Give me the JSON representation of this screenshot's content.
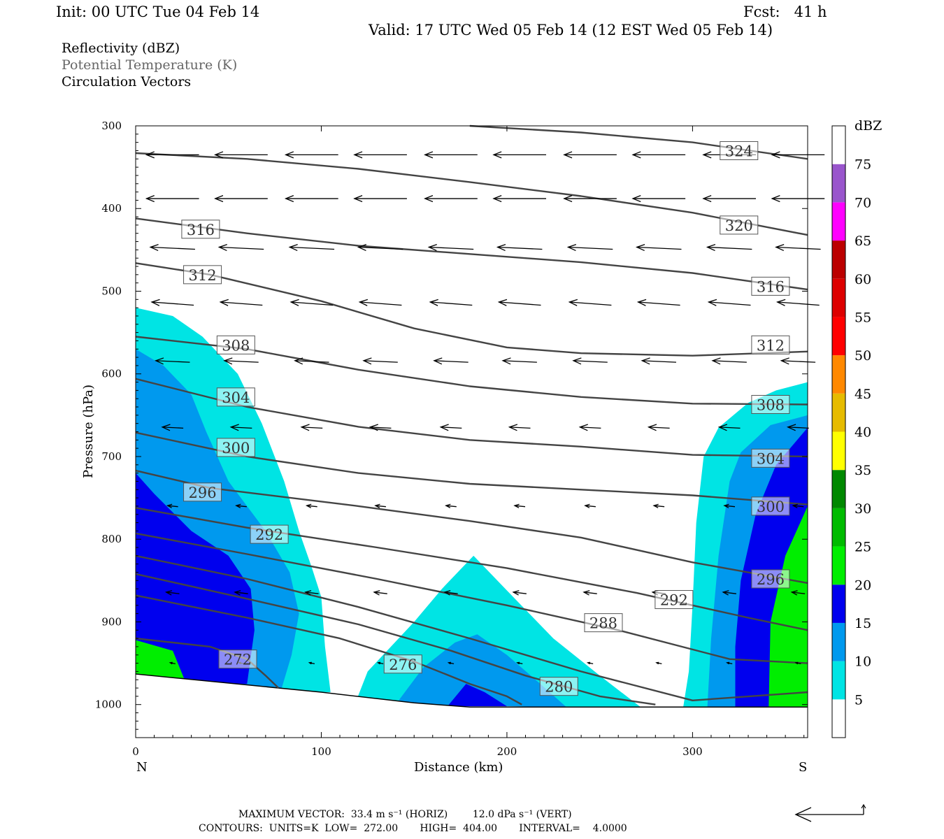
{
  "header": {
    "init": "Init: 00 UTC Tue 04 Feb 14",
    "fcst": "Fcst:   41 h",
    "valid": "Valid: 17 UTC Wed 05 Feb 14 (12 EST Wed 05 Feb 14)",
    "field1": "Reflectivity (dBZ)",
    "field2": "Potential Temperature (K)",
    "field3": "Circulation Vectors"
  },
  "footer": {
    "vector_line": "MAXIMUM VECTOR:  33.4 m s⁻¹ (HORIZ)        12.0 dPa s⁻¹ (VERT)",
    "contour_line": "CONTOURS:  UNITS=K  LOW=  272.00       HIGH=  404.00       INTERVAL=    4.0000"
  },
  "chart_data": {
    "type": "cross-section",
    "xlabel": "Distance (km)",
    "ylabel": "Pressure (hPa)",
    "x_end_labels": {
      "left": "N",
      "right": "S"
    },
    "xlim": [
      0,
      362
    ],
    "ylim": [
      1040,
      300
    ],
    "xticks": [
      0,
      100,
      200,
      300
    ],
    "yticks": [
      300,
      400,
      500,
      600,
      700,
      800,
      900,
      1000
    ],
    "theta_contours": {
      "units": "K",
      "low": 272,
      "high": 404,
      "interval": 4,
      "lines": [
        {
          "theta": 324,
          "pts": [
            [
              180,
              300
            ],
            [
              240,
              308
            ],
            [
              300,
              320
            ],
            [
              362,
              340
            ]
          ],
          "labels": [
            [
              325,
              330
            ]
          ]
        },
        {
          "theta": 320,
          "pts": [
            [
              0,
              333
            ],
            [
              60,
              340
            ],
            [
              120,
              352
            ],
            [
              180,
              368
            ],
            [
              240,
              385
            ],
            [
              300,
              405
            ],
            [
              362,
              432
            ]
          ],
          "labels": [
            [
              325,
              420
            ]
          ]
        },
        {
          "theta": 316,
          "pts": [
            [
              0,
              412
            ],
            [
              60,
              430
            ],
            [
              120,
              445
            ],
            [
              180,
              455
            ],
            [
              240,
              465
            ],
            [
              300,
              478
            ],
            [
              362,
              498
            ]
          ],
          "labels": [
            [
              35,
              425
            ],
            [
              342,
              494
            ]
          ]
        },
        {
          "theta": 312,
          "pts": [
            [
              0,
              466
            ],
            [
              40,
              480
            ],
            [
              100,
              512
            ],
            [
              150,
              545
            ],
            [
              200,
              568
            ],
            [
              240,
              575
            ],
            [
              300,
              578
            ],
            [
              362,
              573
            ]
          ],
          "labels": [
            [
              36,
              480
            ],
            [
              342,
              565
            ]
          ]
        },
        {
          "theta": 308,
          "pts": [
            [
              0,
              555
            ],
            [
              60,
              570
            ],
            [
              120,
              595
            ],
            [
              180,
              615
            ],
            [
              240,
              628
            ],
            [
              300,
              636
            ],
            [
              362,
              637
            ]
          ],
          "labels": [
            [
              54,
              565
            ],
            [
              342,
              637
            ]
          ]
        },
        {
          "theta": 304,
          "pts": [
            [
              0,
              606
            ],
            [
              60,
              640
            ],
            [
              120,
              664
            ],
            [
              180,
              680
            ],
            [
              240,
              688
            ],
            [
              300,
              698
            ],
            [
              362,
              700
            ]
          ],
          "labels": [
            [
              54,
              628
            ],
            [
              342,
              702
            ]
          ]
        },
        {
          "theta": 300,
          "pts": [
            [
              0,
              671
            ],
            [
              60,
              700
            ],
            [
              120,
              720
            ],
            [
              180,
              733
            ],
            [
              240,
              740
            ],
            [
              300,
              747
            ],
            [
              362,
              758
            ]
          ],
          "labels": [
            [
              54,
              689
            ],
            [
              342,
              760
            ]
          ]
        },
        {
          "theta": 296,
          "pts": [
            [
              0,
              717
            ],
            [
              40,
              738
            ],
            [
              120,
              760
            ],
            [
              180,
              778
            ],
            [
              240,
              798
            ],
            [
              300,
              828
            ],
            [
              362,
              853
            ]
          ],
          "labels": [
            [
              36,
              743
            ],
            [
              342,
              848
            ]
          ]
        },
        {
          "theta": 292,
          "pts": [
            [
              0,
              762
            ],
            [
              60,
              786
            ],
            [
              130,
              810
            ],
            [
              200,
              835
            ],
            [
              270,
              865
            ],
            [
              330,
              895
            ],
            [
              362,
              910
            ]
          ],
          "labels": [
            [
              72,
              794
            ],
            [
              290,
              873
            ]
          ]
        },
        {
          "theta": 288,
          "pts": [
            [
              0,
              793
            ],
            [
              60,
              818
            ],
            [
              130,
              848
            ],
            [
              200,
              880
            ],
            [
              260,
              910
            ],
            [
              320,
              945
            ],
            [
              362,
              950
            ]
          ],
          "labels": [
            [
              252,
              901
            ]
          ]
        },
        {
          "theta": 284,
          "pts": [
            [
              0,
              820
            ],
            [
              60,
              848
            ],
            [
              120,
              882
            ],
            [
              180,
              920
            ],
            [
              240,
              960
            ],
            [
              300,
              995
            ],
            [
              362,
              985
            ]
          ],
          "labels": []
        },
        {
          "theta": 280,
          "pts": [
            [
              0,
              842
            ],
            [
              60,
              872
            ],
            [
              120,
              903
            ],
            [
              170,
              935
            ],
            [
              210,
              965
            ],
            [
              250,
              990
            ],
            [
              280,
              1000
            ]
          ],
          "labels": [
            [
              228,
              978
            ]
          ]
        },
        {
          "theta": 276,
          "pts": [
            [
              0,
              868
            ],
            [
              60,
              895
            ],
            [
              110,
              920
            ],
            [
              150,
              948
            ],
            [
              180,
              975
            ],
            [
              200,
              990
            ],
            [
              208,
              1000
            ]
          ],
          "labels": [
            [
              144,
              951
            ]
          ]
        },
        {
          "theta": 272,
          "pts": [
            [
              0,
              920
            ],
            [
              40,
              930
            ],
            [
              60,
              945
            ],
            [
              70,
              965
            ],
            [
              77,
              980
            ]
          ],
          "labels": [
            [
              55,
              945
            ]
          ]
        }
      ]
    },
    "reflectivity": {
      "units": "dBZ",
      "colorbar_levels": [
        5,
        10,
        15,
        20,
        25,
        30,
        35,
        40,
        45,
        50,
        55,
        60,
        65,
        70,
        75
      ],
      "colorbar_colors": [
        "#ffffff",
        "#00e4e4",
        "#0099ee",
        "#0000ee",
        "#00ee00",
        "#00bb00",
        "#008800",
        "#ffff00",
        "#e6bb00",
        "#ff8800",
        "#ff0000",
        "#dd0000",
        "#bb0000",
        "#ff00ff",
        "#9955cc",
        "#ffffff"
      ],
      "regions": [
        {
          "dbz": 5,
          "color": "#00e4e4",
          "pts": [
            [
              0,
              520
            ],
            [
              20,
              530
            ],
            [
              36,
              555
            ],
            [
              55,
              600
            ],
            [
              68,
              660
            ],
            [
              80,
              730
            ],
            [
              88,
              790
            ],
            [
              95,
              835
            ],
            [
              100,
              870
            ],
            [
              102,
              930
            ],
            [
              105,
              985
            ],
            [
              0,
              985
            ]
          ]
        },
        {
          "dbz": 10,
          "color": "#0099ee",
          "pts": [
            [
              0,
              570
            ],
            [
              15,
              590
            ],
            [
              30,
              625
            ],
            [
              38,
              670
            ],
            [
              50,
              730
            ],
            [
              70,
              790
            ],
            [
              83,
              840
            ],
            [
              88,
              890
            ],
            [
              84,
              940
            ],
            [
              78,
              985
            ],
            [
              0,
              985
            ]
          ]
        },
        {
          "dbz": 15,
          "color": "#0000ee",
          "pts": [
            [
              0,
              720
            ],
            [
              10,
              745
            ],
            [
              30,
              790
            ],
            [
              50,
              820
            ],
            [
              62,
              860
            ],
            [
              64,
              910
            ],
            [
              60,
              975
            ],
            [
              0,
              975
            ]
          ]
        },
        {
          "dbz": 20,
          "color": "#00ee00",
          "pts": [
            [
              0,
              922
            ],
            [
              20,
              935
            ],
            [
              26,
              968
            ],
            [
              0,
              965
            ]
          ]
        },
        {
          "dbz": 5,
          "color": "#00e4e4",
          "pts": [
            [
              118,
              1000
            ],
            [
              125,
              960
            ],
            [
              150,
              900
            ],
            [
              165,
              860
            ],
            [
              182,
              820
            ],
            [
              200,
              862
            ],
            [
              225,
              920
            ],
            [
              250,
              965
            ],
            [
              272,
              1003
            ]
          ]
        },
        {
          "dbz": 10,
          "color": "#0099ee",
          "pts": [
            [
              140,
              1000
            ],
            [
              155,
              955
            ],
            [
              172,
              925
            ],
            [
              184,
              915
            ],
            [
              200,
              940
            ],
            [
              218,
              975
            ],
            [
              232,
              1003
            ]
          ]
        },
        {
          "dbz": 15,
          "color": "#0000ee",
          "pts": [
            [
              168,
              1002
            ],
            [
              178,
              975
            ],
            [
              188,
              985
            ],
            [
              200,
              1002
            ]
          ]
        },
        {
          "dbz": 5,
          "color": "#00e4e4",
          "pts": [
            [
              295,
              1003
            ],
            [
              298,
              960
            ],
            [
              300,
              880
            ],
            [
              302,
              780
            ],
            [
              306,
              700
            ],
            [
              314,
              665
            ],
            [
              330,
              635
            ],
            [
              345,
              620
            ],
            [
              362,
              610
            ],
            [
              362,
              1003
            ]
          ]
        },
        {
          "dbz": 10,
          "color": "#0099ee",
          "pts": [
            [
              308,
              1003
            ],
            [
              310,
              920
            ],
            [
              314,
              820
            ],
            [
              320,
              730
            ],
            [
              326,
              695
            ],
            [
              342,
              662
            ],
            [
              362,
              650
            ],
            [
              362,
              1003
            ]
          ]
        },
        {
          "dbz": 15,
          "color": "#0000ee",
          "pts": [
            [
              323,
              1003
            ],
            [
              323,
              930
            ],
            [
              326,
              850
            ],
            [
              334,
              770
            ],
            [
              345,
              710
            ],
            [
              362,
              665
            ],
            [
              362,
              1003
            ]
          ]
        },
        {
          "dbz": 20,
          "color": "#00ee00",
          "pts": [
            [
              341,
              1003
            ],
            [
              342,
              900
            ],
            [
              350,
              820
            ],
            [
              362,
              760
            ],
            [
              362,
              1003
            ]
          ]
        }
      ]
    },
    "terrain": {
      "pts": [
        [
          0,
          963
        ],
        [
          100,
          985
        ],
        [
          150,
          998
        ],
        [
          180,
          1003
        ],
        [
          362,
          1003
        ]
      ]
    },
    "circulation_vectors": {
      "max_horiz": 33.4,
      "max_horiz_units": "m s⁻¹",
      "max_vert": 12.0,
      "max_vert_units": "dPa s⁻¹",
      "rows": [
        {
          "p": 335,
          "u": -1.0,
          "v": 0.0
        },
        {
          "p": 388,
          "u": -1.0,
          "v": 0.0
        },
        {
          "p": 448,
          "u": -0.85,
          "v": 0.04
        },
        {
          "p": 515,
          "u": -0.8,
          "v": 0.06
        },
        {
          "p": 585,
          "u": -0.65,
          "v": 0.03
        },
        {
          "p": 665,
          "u": -0.4,
          "v": 0.02
        },
        {
          "p": 760,
          "u": -0.2,
          "v": 0.02
        },
        {
          "p": 865,
          "u": -0.25,
          "v": 0.03
        },
        {
          "p": 950,
          "u": -0.1,
          "v": 0.02
        }
      ],
      "xs": [
        20,
        57,
        95,
        132,
        170,
        207,
        245,
        282,
        320,
        357
      ]
    }
  }
}
